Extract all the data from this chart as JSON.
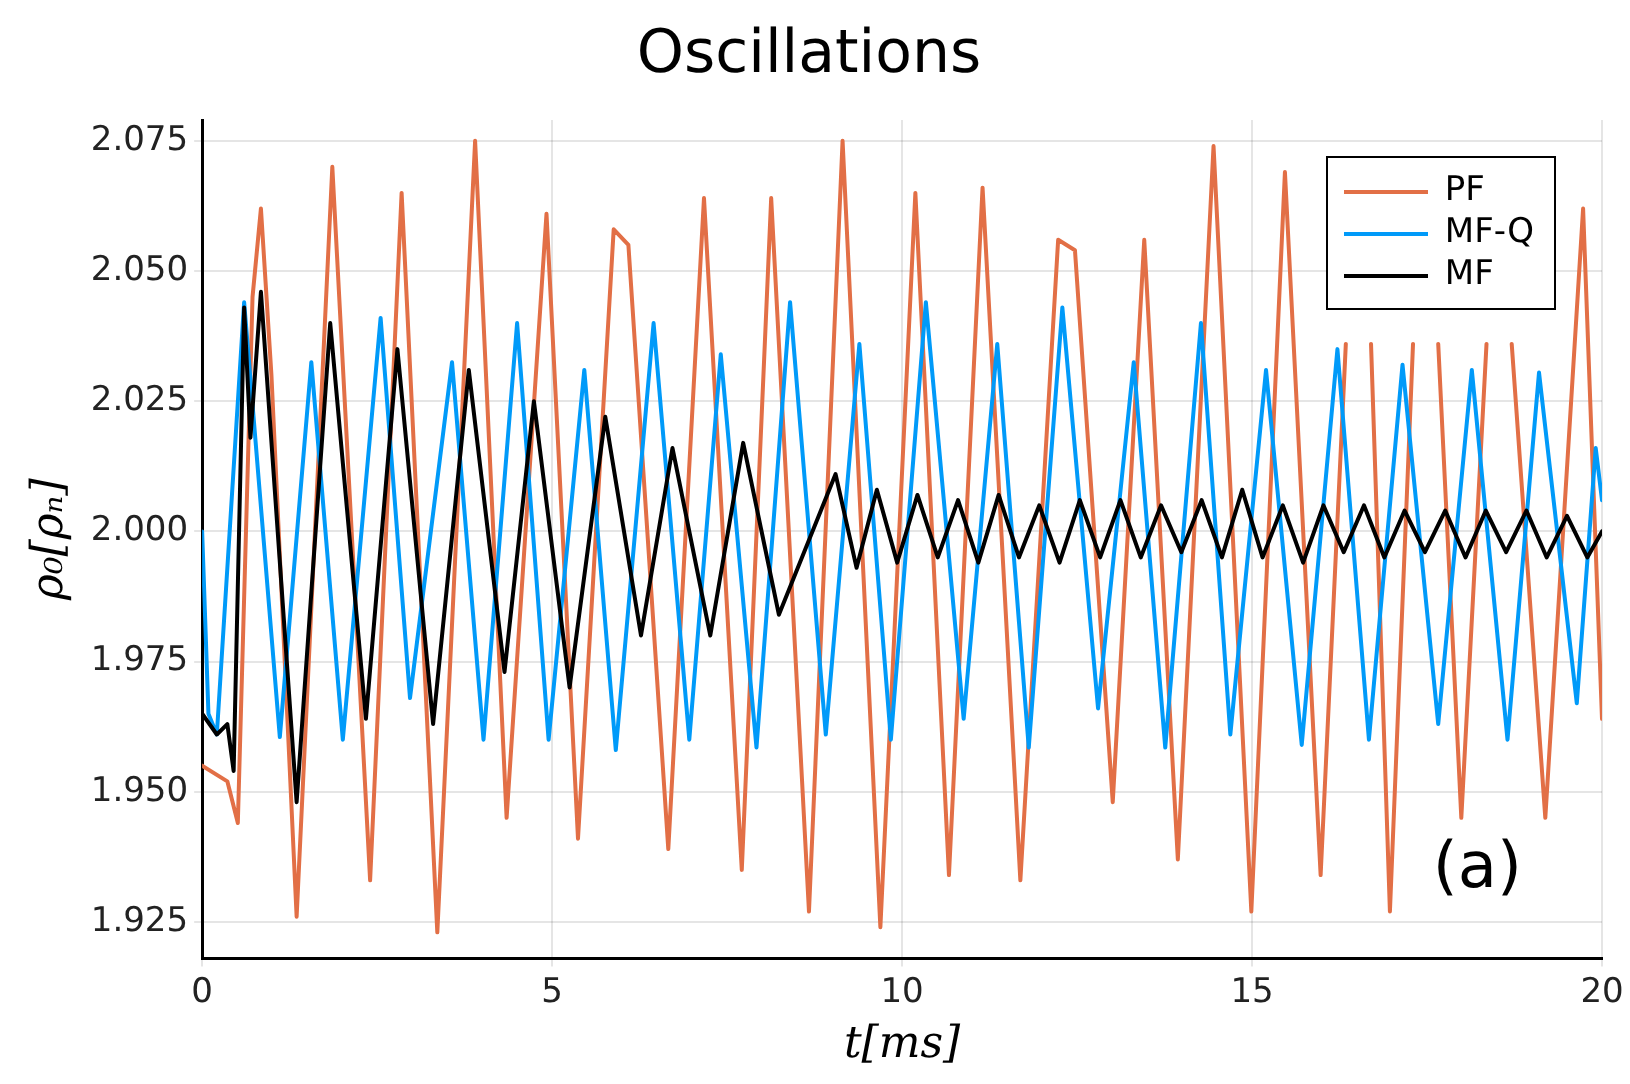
{
  "chart_data": {
    "type": "line",
    "title": "Oscillations",
    "xlabel": "t[ms]",
    "ylabel": "ρ₀[ρₙ]",
    "xlim": [
      0,
      20
    ],
    "xticks": [
      0,
      5,
      10,
      15,
      20
    ],
    "ylim": [
      1.918,
      2.079
    ],
    "yticks": [
      1.925,
      {
        "value": 1.95,
        "label": "1.950"
      },
      1.975,
      {
        "value": 2,
        "label": "2.000"
      },
      2.025,
      {
        "value": 2.05,
        "label": "2.050"
      },
      2.075
    ],
    "grid": true,
    "legend": "top right",
    "marker": "none",
    "line_style": "solid",
    "annotations": [
      "(a)"
    ],
    "series": [
      {
        "name": "PF",
        "color": "#e26f46",
        "x": [
          0,
          0.36,
          0.51,
          0.72,
          0.84,
          0.99,
          1.35,
          1.86,
          2.4,
          2.85,
          3.36,
          3.9,
          4.35,
          4.92,
          5.37,
          5.88,
          6.09,
          6.66,
          7.17,
          7.71,
          8.13,
          8.67,
          9.15,
          9.69,
          10.19,
          10.67,
          11.15,
          11.69,
          12.23,
          12.47,
          13.01,
          13.46,
          13.94,
          14.45,
          14.99,
          15.47,
          15.98,
          16.34,
          16.49,
          16.7,
          16.97,
          17.3,
          17.45,
          17.66,
          17.99,
          18.35,
          18.5,
          18.71,
          19.19,
          19.73,
          20
        ],
        "values": [
          1.955,
          1.952,
          1.944,
          2.045,
          2.062,
          2.03,
          1.926,
          2.07,
          1.933,
          2.065,
          1.923,
          2.075,
          1.945,
          2.061,
          1.941,
          2.058,
          2.055,
          1.939,
          2.064,
          1.935,
          2.064,
          1.927,
          2.075,
          1.924,
          2.065,
          1.934,
          2.066,
          1.933,
          2.056,
          2.054,
          1.948,
          2.056,
          1.937,
          2.074,
          1.927,
          2.069,
          1.934,
          2.036,
          null,
          2.036,
          1.927,
          2.036,
          null,
          2.036,
          1.945,
          2.036,
          null,
          2.036,
          1.945,
          2.062,
          1.964
        ]
      },
      {
        "name": "MF-Q",
        "color": "#009af9",
        "x": [
          0,
          0.09,
          0.21,
          0.6,
          1.11,
          1.56,
          2.01,
          2.55,
          2.97,
          3.57,
          4.02,
          4.5,
          4.95,
          5.46,
          5.91,
          6.45,
          6.96,
          7.41,
          7.92,
          8.4,
          8.91,
          9.39,
          9.84,
          10.34,
          10.88,
          11.36,
          11.81,
          12.29,
          12.8,
          13.31,
          13.76,
          14.27,
          14.69,
          15.2,
          15.71,
          16.22,
          16.67,
          17.15,
          17.66,
          18.14,
          18.65,
          19.1,
          19.64,
          19.91,
          20
        ],
        "values": [
          2.0,
          1.965,
          1.961,
          2.044,
          1.9605,
          2.0325,
          1.96,
          2.041,
          1.968,
          2.0325,
          1.96,
          2.04,
          1.96,
          2.031,
          1.958,
          2.04,
          1.96,
          2.034,
          1.9585,
          2.044,
          1.961,
          2.036,
          1.96,
          2.044,
          1.964,
          2.036,
          1.9585,
          2.043,
          1.966,
          2.0325,
          1.9585,
          2.04,
          1.961,
          2.031,
          1.959,
          2.035,
          1.96,
          2.032,
          1.963,
          2.031,
          1.96,
          2.0305,
          1.967,
          2.016,
          2.006
        ]
      },
      {
        "name": "MF",
        "color": "#000000",
        "x": [
          0,
          0.21,
          0.36,
          0.45,
          0.6,
          0.69,
          0.84,
          1.35,
          1.83,
          2.34,
          2.79,
          3.3,
          3.81,
          4.32,
          4.74,
          5.25,
          5.76,
          6.27,
          6.72,
          7.26,
          7.73,
          8.24,
          9.05,
          9.35,
          9.64,
          9.93,
          10.22,
          10.51,
          10.8,
          11.09,
          11.38,
          11.67,
          11.96,
          12.25,
          12.54,
          12.83,
          13.12,
          13.41,
          13.7,
          13.99,
          14.28,
          14.57,
          14.86,
          15.15,
          15.44,
          15.73,
          16.02,
          16.31,
          16.6,
          16.89,
          17.18,
          17.47,
          17.76,
          18.05,
          18.34,
          18.63,
          18.92,
          19.21,
          19.5,
          19.79,
          20
        ],
        "values": [
          1.965,
          1.961,
          1.963,
          1.954,
          2.043,
          2.018,
          2.046,
          1.948,
          2.04,
          1.964,
          2.035,
          1.963,
          2.031,
          1.973,
          2.025,
          1.97,
          2.022,
          1.98,
          2.016,
          1.98,
          2.017,
          1.984,
          2.011,
          1.993,
          2.008,
          1.994,
          2.007,
          1.995,
          2.006,
          1.994,
          2.007,
          1.995,
          2.005,
          1.994,
          2.006,
          1.995,
          2.006,
          1.995,
          2.005,
          1.996,
          2.006,
          1.995,
          2.008,
          1.995,
          2.005,
          1.994,
          2.005,
          1.996,
          2.005,
          1.995,
          2.004,
          1.996,
          2.004,
          1.995,
          2.004,
          1.996,
          2.004,
          1.995,
          2.003,
          1.995,
          2.0
        ]
      }
    ]
  }
}
